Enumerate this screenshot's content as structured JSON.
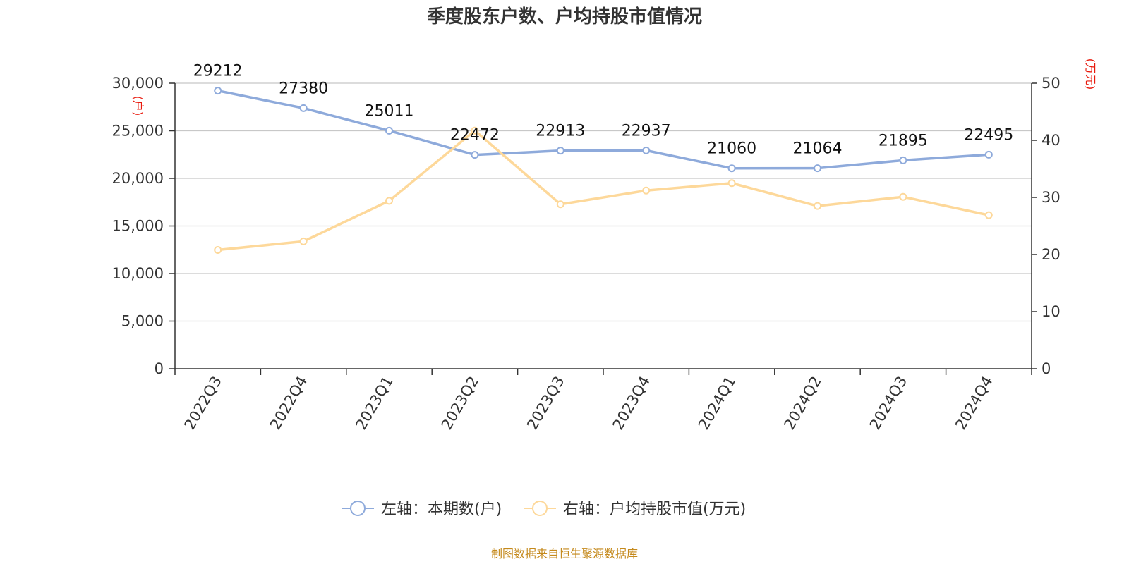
{
  "chart_data": {
    "type": "line",
    "title": "季度股东户数、户均持股市值情况",
    "categories": [
      "2022Q3",
      "2022Q4",
      "2023Q1",
      "2023Q2",
      "2023Q3",
      "2023Q4",
      "2024Q1",
      "2024Q2",
      "2024Q3",
      "2024Q4"
    ],
    "left_axis": {
      "unit_label": "(户)",
      "ylim": [
        0,
        30000
      ],
      "ticks": [
        0,
        5000,
        10000,
        15000,
        20000,
        25000,
        30000
      ],
      "tick_labels": [
        "0",
        "5,000",
        "10,000",
        "15,000",
        "20,000",
        "25,000",
        "30,000"
      ]
    },
    "right_axis": {
      "unit_label": "(万元)",
      "ylim": [
        0,
        50
      ],
      "ticks": [
        0,
        10,
        20,
        30,
        40,
        50
      ],
      "tick_labels": [
        "0",
        "10",
        "20",
        "30",
        "40",
        "50"
      ]
    },
    "series": [
      {
        "name": "左轴：本期数(户)",
        "axis": "left",
        "color": "#8eaadb",
        "values": [
          29212,
          27380,
          25011,
          22472,
          22913,
          22937,
          21060,
          21064,
          21895,
          22495
        ],
        "data_labels": [
          "29212",
          "27380",
          "25011",
          "22472",
          "22913",
          "22937",
          "21060",
          "21064",
          "21895",
          "22495"
        ]
      },
      {
        "name": "右轴：户均持股市值(万元)",
        "axis": "right",
        "color": "#fdd89a",
        "values": [
          20.8,
          22.3,
          29.4,
          41.7,
          28.8,
          31.2,
          32.5,
          28.5,
          30.1,
          26.9
        ]
      }
    ],
    "grid": true,
    "legend_position": "bottom-center"
  },
  "source_text": "制图数据来自恒生聚源数据库"
}
